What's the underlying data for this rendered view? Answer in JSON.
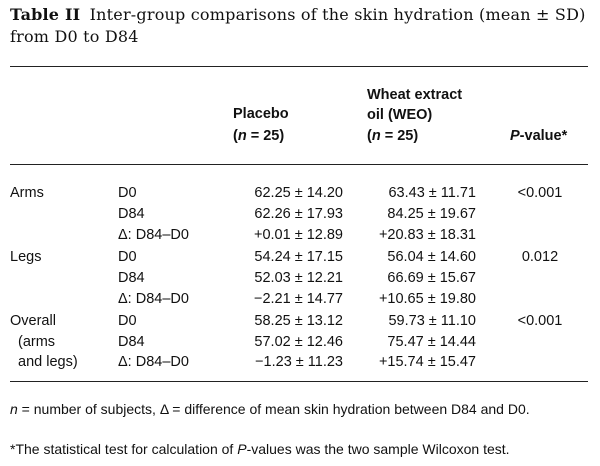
{
  "caption": {
    "label": "Table II",
    "text": "Inter-group comparisons of the skin hydration (mean ± SD) from D0 to D84"
  },
  "headers": {
    "placebo_line1": "Placebo",
    "placebo_n_prefix": "(",
    "placebo_n_var": "n",
    "placebo_n_rest": " = 25)",
    "weo_line1": "Wheat extract",
    "weo_line2": "oil (WEO)",
    "weo_n_prefix": "(",
    "weo_n_var": "n",
    "weo_n_rest": " = 25)",
    "pvalue_var": "P",
    "pvalue_rest": "-value*"
  },
  "groups": [
    {
      "label_lines": [
        "Arms"
      ],
      "p_value": "<0.001",
      "rows": [
        {
          "time": "D0",
          "placebo": "62.25 ± 14.20",
          "weo": "63.43 ± 11.71"
        },
        {
          "time": "D84",
          "placebo": "62.26 ± 17.93",
          "weo": "84.25 ± 19.67"
        },
        {
          "time": "Δ: D84–D0",
          "placebo": "+0.01 ± 12.89",
          "weo": "+20.83 ± 18.31"
        }
      ]
    },
    {
      "label_lines": [
        "Legs"
      ],
      "p_value": "0.012",
      "rows": [
        {
          "time": "D0",
          "placebo": "54.24 ± 17.15",
          "weo": "56.04 ± 14.60"
        },
        {
          "time": "D84",
          "placebo": "52.03 ± 12.21",
          "weo": "66.69 ± 15.67"
        },
        {
          "time": "Δ: D84–D0",
          "placebo": "−2.21 ± 14.77",
          "weo": "+10.65 ± 19.80"
        }
      ]
    },
    {
      "label_lines": [
        "Overall",
        "(arms",
        "and legs)"
      ],
      "p_value": "<0.001",
      "rows": [
        {
          "time": "D0",
          "placebo": "58.25 ± 13.12",
          "weo": "59.73 ± 11.10"
        },
        {
          "time": "D84",
          "placebo": "57.02 ± 12.46",
          "weo": "75.47 ± 14.44"
        },
        {
          "time": "Δ: D84–D0",
          "placebo": "−1.23 ± 11.23",
          "weo": "+15.74 ± 15.47"
        }
      ]
    }
  ],
  "footnotes": {
    "n_var": "n",
    "line1_rest": " = number of subjects, Δ = difference of mean skin hydration between D84 and D0.",
    "line2_start": "*The statistical test for calculation of ",
    "line2_var": "P",
    "line2_rest": "-values was the two sample Wilcoxon test."
  }
}
